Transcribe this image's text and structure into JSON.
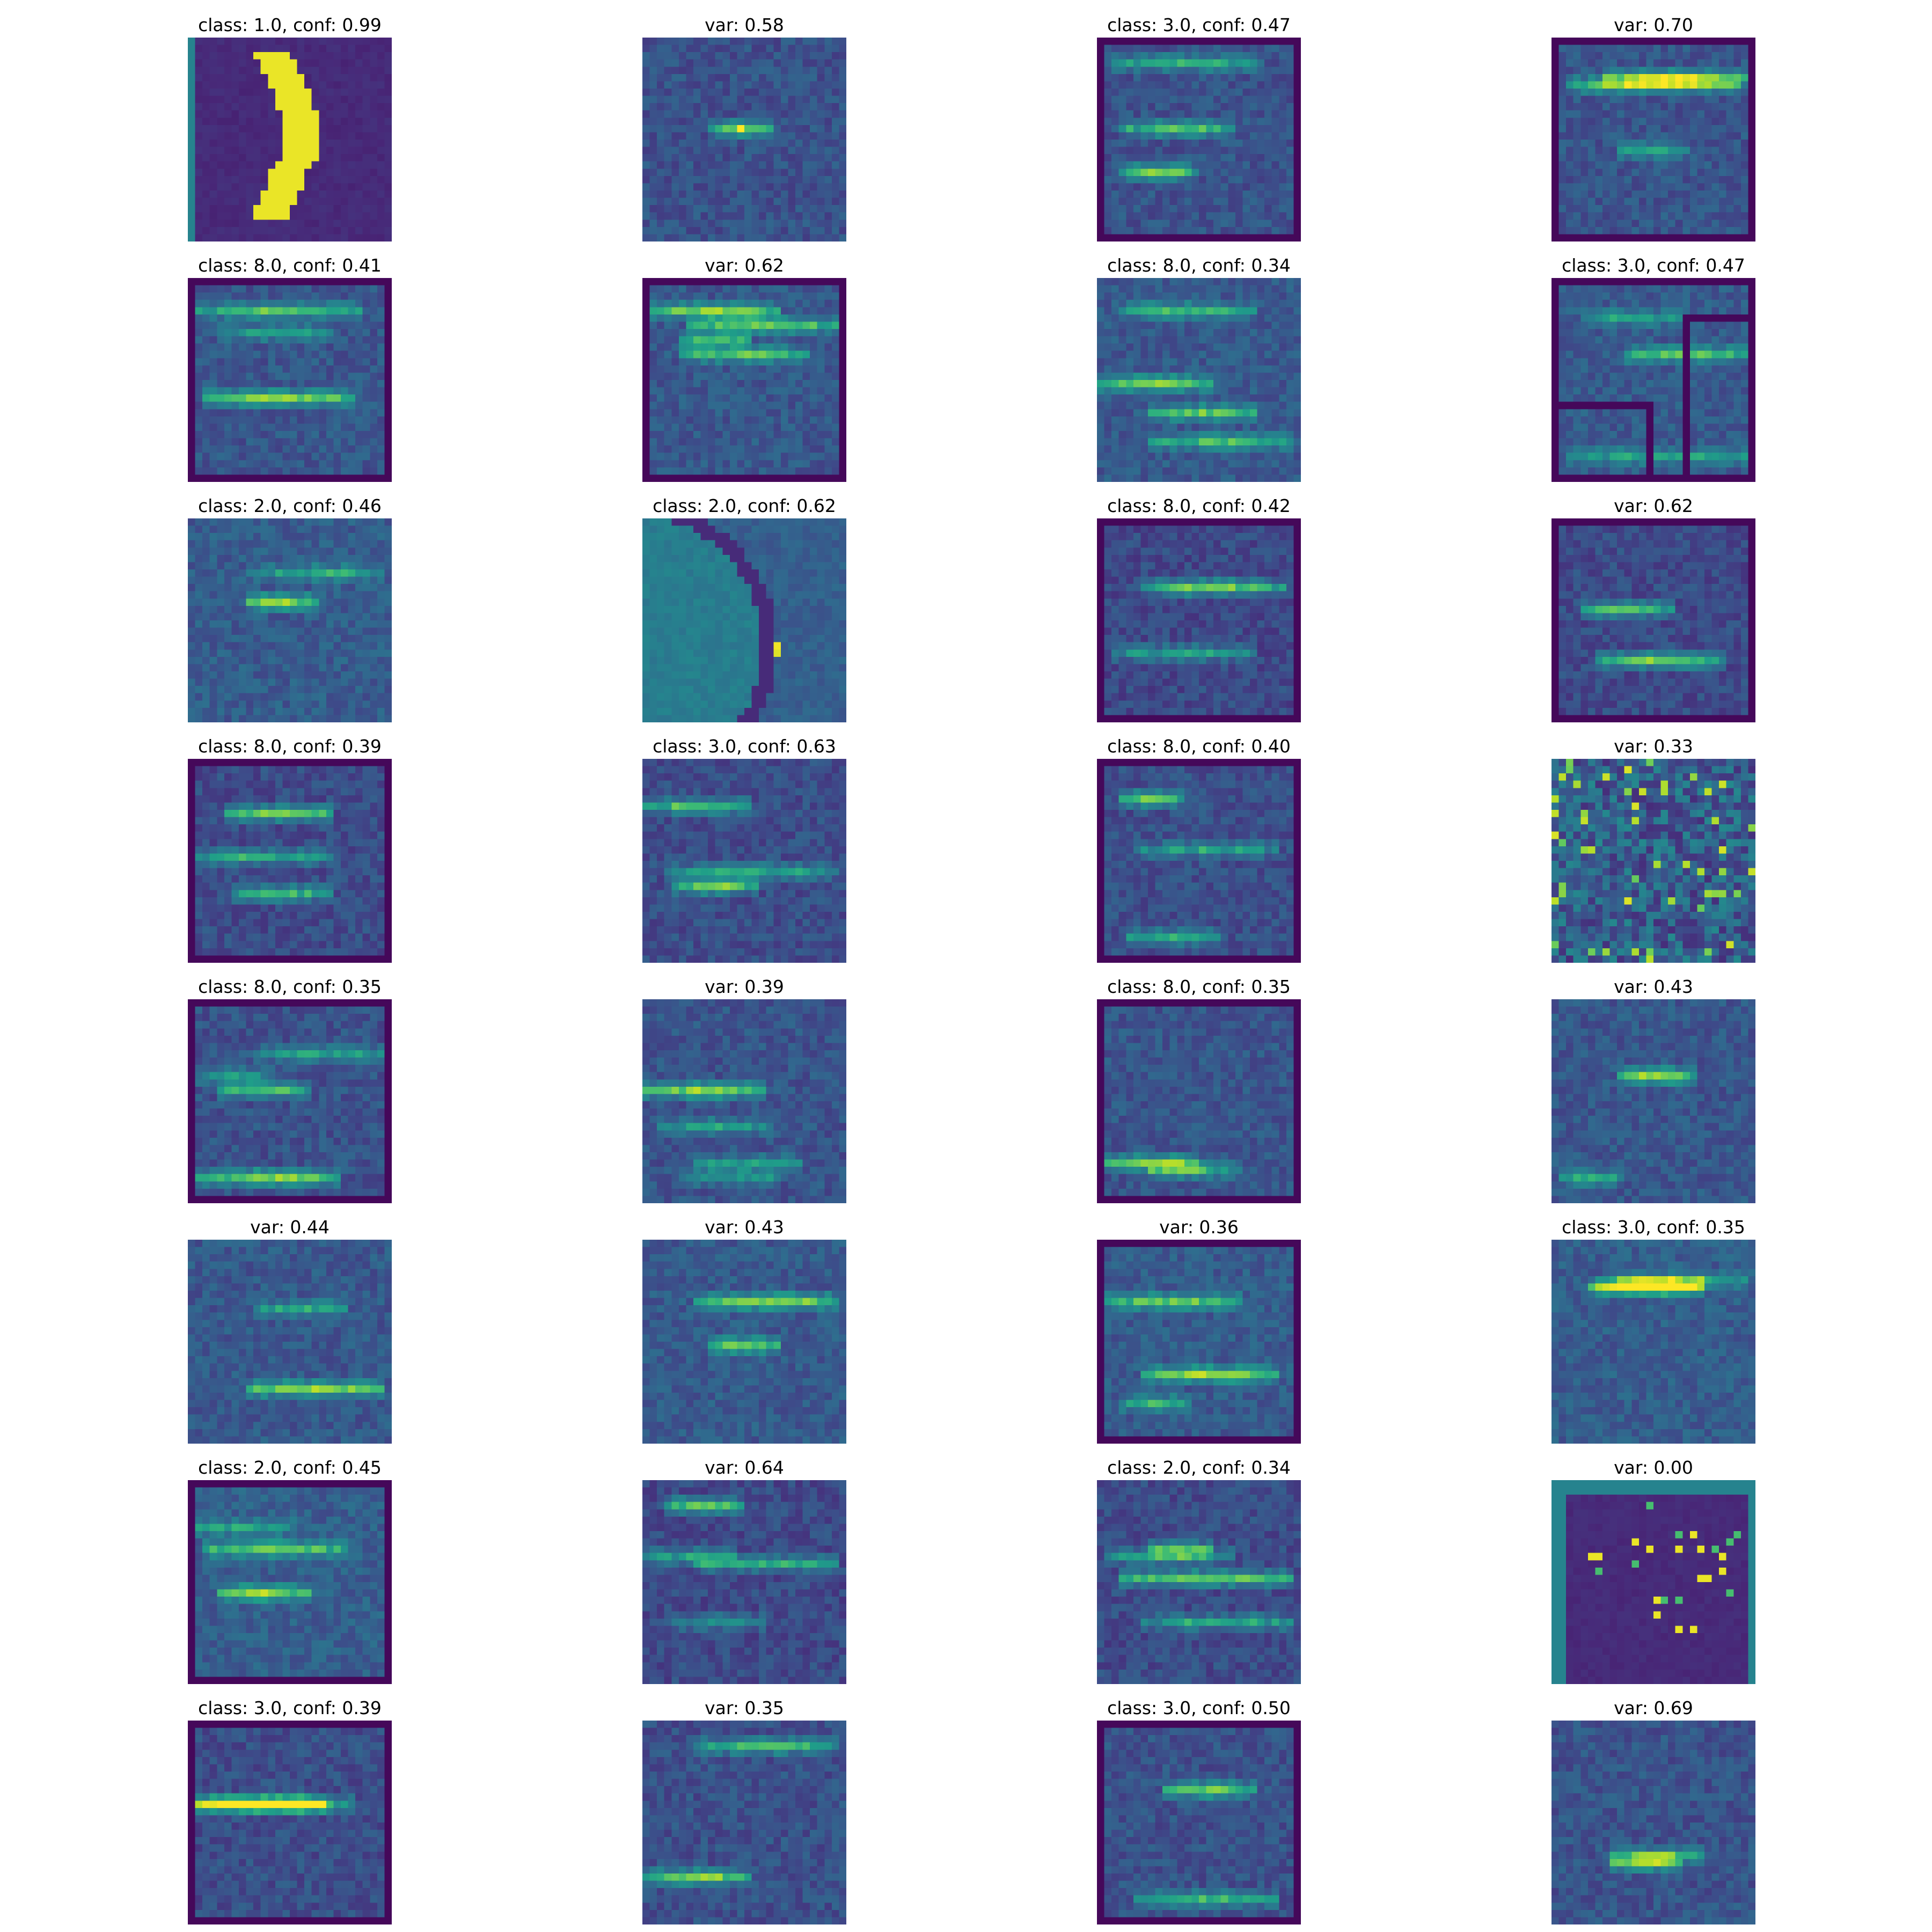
{
  "colormap": {
    "name": "viridis",
    "stops": [
      "#440154",
      "#482878",
      "#3e4a89",
      "#31688e",
      "#26828e",
      "#1f9e89",
      "#35b779",
      "#6ece58",
      "#b5de2b",
      "#fde725"
    ]
  },
  "tiles": [
    {
      "title": "class: 1.0, conf: 0.99",
      "pattern": "digit-one"
    },
    {
      "title": "var: 0.58",
      "pattern": "single-bright-dash"
    },
    {
      "title": "class: 3.0, conf: 0.47",
      "pattern": "framed-horizontal-streaks"
    },
    {
      "title": "var: 0.70",
      "pattern": "framed-horizontal-streaks"
    },
    {
      "title": "class: 8.0, conf: 0.41",
      "pattern": "framed-horizontal-streaks"
    },
    {
      "title": "var: 0.62",
      "pattern": "framed-horizontal-streaks"
    },
    {
      "title": "class: 8.0, conf: 0.34",
      "pattern": "horizontal-streaks"
    },
    {
      "title": "class: 3.0, conf: 0.47",
      "pattern": "framed-grid-lines"
    },
    {
      "title": "class: 2.0, conf: 0.46",
      "pattern": "horizontal-streaks"
    },
    {
      "title": "class: 2.0, conf: 0.62",
      "pattern": "curved-edge"
    },
    {
      "title": "class: 8.0, conf: 0.42",
      "pattern": "framed-horizontal-streaks"
    },
    {
      "title": "var: 0.62",
      "pattern": "framed-horizontal-streaks"
    },
    {
      "title": "class: 8.0, conf: 0.39",
      "pattern": "framed-horizontal-streaks"
    },
    {
      "title": "class: 3.0, conf: 0.63",
      "pattern": "horizontal-streaks"
    },
    {
      "title": "class: 8.0, conf: 0.40",
      "pattern": "framed-horizontal-streaks"
    },
    {
      "title": "var: 0.33",
      "pattern": "speckled-noise"
    },
    {
      "title": "class: 8.0, conf: 0.35",
      "pattern": "framed-horizontal-streaks"
    },
    {
      "title": "var: 0.39",
      "pattern": "horizontal-streaks"
    },
    {
      "title": "class: 8.0, conf: 0.35",
      "pattern": "framed-horizontal-streaks"
    },
    {
      "title": "var: 0.43",
      "pattern": "horizontal-streaks"
    },
    {
      "title": "var: 0.44",
      "pattern": "horizontal-streaks"
    },
    {
      "title": "var: 0.43",
      "pattern": "horizontal-streaks"
    },
    {
      "title": "var: 0.36",
      "pattern": "framed-horizontal-streaks"
    },
    {
      "title": "class: 3.0, conf: 0.35",
      "pattern": "horizontal-streaks"
    },
    {
      "title": "class: 2.0, conf: 0.45",
      "pattern": "framed-horizontal-streaks"
    },
    {
      "title": "var: 0.64",
      "pattern": "horizontal-streaks"
    },
    {
      "title": "class: 2.0, conf: 0.34",
      "pattern": "horizontal-streaks"
    },
    {
      "title": "var: 0.00",
      "pattern": "dark-field-sparse-dots"
    },
    {
      "title": "class: 3.0, conf: 0.39",
      "pattern": "framed-horizontal-streaks"
    },
    {
      "title": "var: 0.35",
      "pattern": "horizontal-streaks"
    },
    {
      "title": "class: 3.0, conf: 0.50",
      "pattern": "framed-horizontal-streaks"
    },
    {
      "title": "var: 0.69",
      "pattern": "horizontal-streaks"
    }
  ]
}
